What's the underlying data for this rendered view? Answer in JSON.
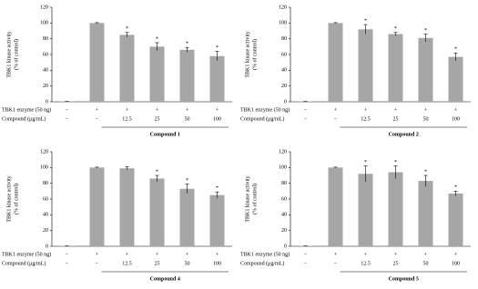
{
  "chart_data": [
    {
      "type": "bar",
      "ylabel": [
        "TBK1 kinase activity",
        "(% of control)"
      ],
      "ylim": [
        0,
        120
      ],
      "yticks": [
        0,
        20,
        40,
        60,
        80,
        100,
        120
      ],
      "color": "#a6a6a6",
      "values": [
        0.5,
        100,
        85,
        70,
        66,
        58
      ],
      "errors": [
        0,
        0.5,
        3,
        5,
        3,
        6
      ],
      "significance": [
        null,
        null,
        "*",
        "*",
        "*",
        "*"
      ],
      "row_labels": [
        "TBK1 enzyme (50 ng)",
        "Compound (μg/mL)"
      ],
      "rows": [
        [
          "−",
          "+",
          "+",
          "+",
          "+",
          "+"
        ],
        [
          "−",
          "−",
          "12.5",
          "25",
          "50",
          "100"
        ]
      ],
      "compound_label": "Compound 1"
    },
    {
      "type": "bar",
      "ylabel": [
        "TBK1 kinase activity",
        "(% of control)"
      ],
      "ylim": [
        0,
        120
      ],
      "yticks": [
        0,
        20,
        40,
        60,
        80,
        100,
        120
      ],
      "color": "#a6a6a6",
      "values": [
        0.5,
        100,
        92,
        86,
        81,
        57
      ],
      "errors": [
        0,
        0.5,
        6,
        2,
        5,
        5
      ],
      "significance": [
        null,
        null,
        "*",
        "*",
        "*",
        "*"
      ],
      "row_labels": [
        "TBK1 enzyme (50 ng)",
        "Compound (μg/mL)"
      ],
      "rows": [
        [
          "−",
          "+",
          "+",
          "+",
          "+",
          "+"
        ],
        [
          "−",
          "−",
          "12.5",
          "25",
          "50",
          "100"
        ]
      ],
      "compound_label": "Compound 2"
    },
    {
      "type": "bar",
      "ylabel": [
        "TBK1 kinase activity",
        "(% of control)"
      ],
      "ylim": [
        0,
        120
      ],
      "yticks": [
        0,
        20,
        40,
        60,
        80,
        100,
        120
      ],
      "color": "#a6a6a6",
      "values": [
        0.5,
        100,
        99,
        86,
        73,
        65
      ],
      "errors": [
        0,
        0.5,
        2,
        4,
        6,
        4
      ],
      "significance": [
        null,
        null,
        null,
        "*",
        "*",
        "*"
      ],
      "row_labels": [
        "TBK1 enzyme (50 ng)",
        "Compound (μg/mL)"
      ],
      "rows": [
        [
          "−",
          "+",
          "+",
          "+",
          "+",
          "+"
        ],
        [
          "−",
          "−",
          "12.5",
          "25",
          "50",
          "100"
        ]
      ],
      "compound_label": "Compound 4"
    },
    {
      "type": "bar",
      "ylabel": [
        "TBK1 kinase activity",
        "(% of control)"
      ],
      "ylim": [
        0,
        120
      ],
      "yticks": [
        0,
        20,
        40,
        60,
        80,
        100,
        120
      ],
      "color": "#a6a6a6",
      "values": [
        0.5,
        100,
        92,
        94,
        83,
        67
      ],
      "errors": [
        0,
        0.5,
        10,
        8,
        7,
        3
      ],
      "significance": [
        null,
        null,
        "*",
        "*",
        "*",
        "*"
      ],
      "row_labels": [
        "TBK1 enzyme (50 ng)",
        "Compound (μg/mL)"
      ],
      "rows": [
        [
          "−",
          "+",
          "+",
          "+",
          "+",
          "+"
        ],
        [
          "−",
          "−",
          "12.5",
          "25",
          "50",
          "100"
        ]
      ],
      "compound_label": "Compound 5"
    }
  ]
}
